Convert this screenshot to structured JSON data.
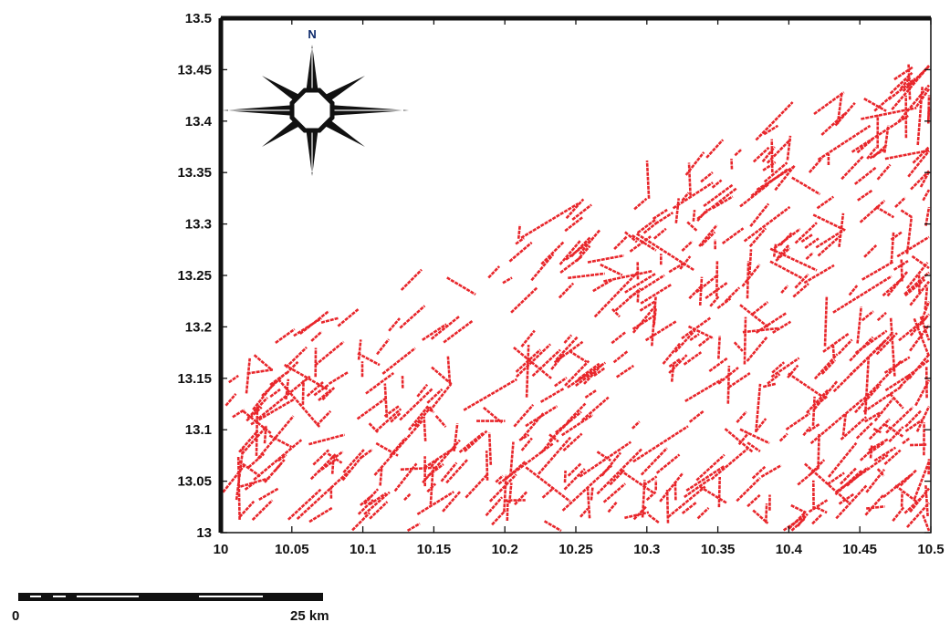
{
  "map": {
    "lon_range": [
      10,
      10.5
    ],
    "lat_range": [
      13,
      13.5
    ],
    "x_ticks": [
      10,
      10.05,
      10.1,
      10.15,
      10.2,
      10.25,
      10.3,
      10.35,
      10.4,
      10.45,
      10.5
    ],
    "x_tick_labels": [
      "10",
      "10.05",
      "10.1",
      "10.15",
      "10.2",
      "10.25",
      "10.3",
      "10.35",
      "10.4",
      "10.45",
      "10.5"
    ],
    "y_ticks": [
      13,
      13.05,
      13.1,
      13.15,
      13.2,
      13.25,
      13.3,
      13.35,
      13.4,
      13.45,
      13.5
    ],
    "y_tick_labels": [
      "13",
      "13.05",
      "13.1",
      "13.15",
      "13.2",
      "13.25",
      "13.3",
      "13.35",
      "13.4",
      "13.45",
      "13.5"
    ],
    "lineament_color": "#e8262b",
    "frame_color": "#111111",
    "lineament_trend": "NE-SW"
  },
  "north_arrow": {
    "label": "N",
    "icon": "compass-rose-icon"
  },
  "scale_bar": {
    "start_label": "0",
    "end_label": "25 km"
  }
}
